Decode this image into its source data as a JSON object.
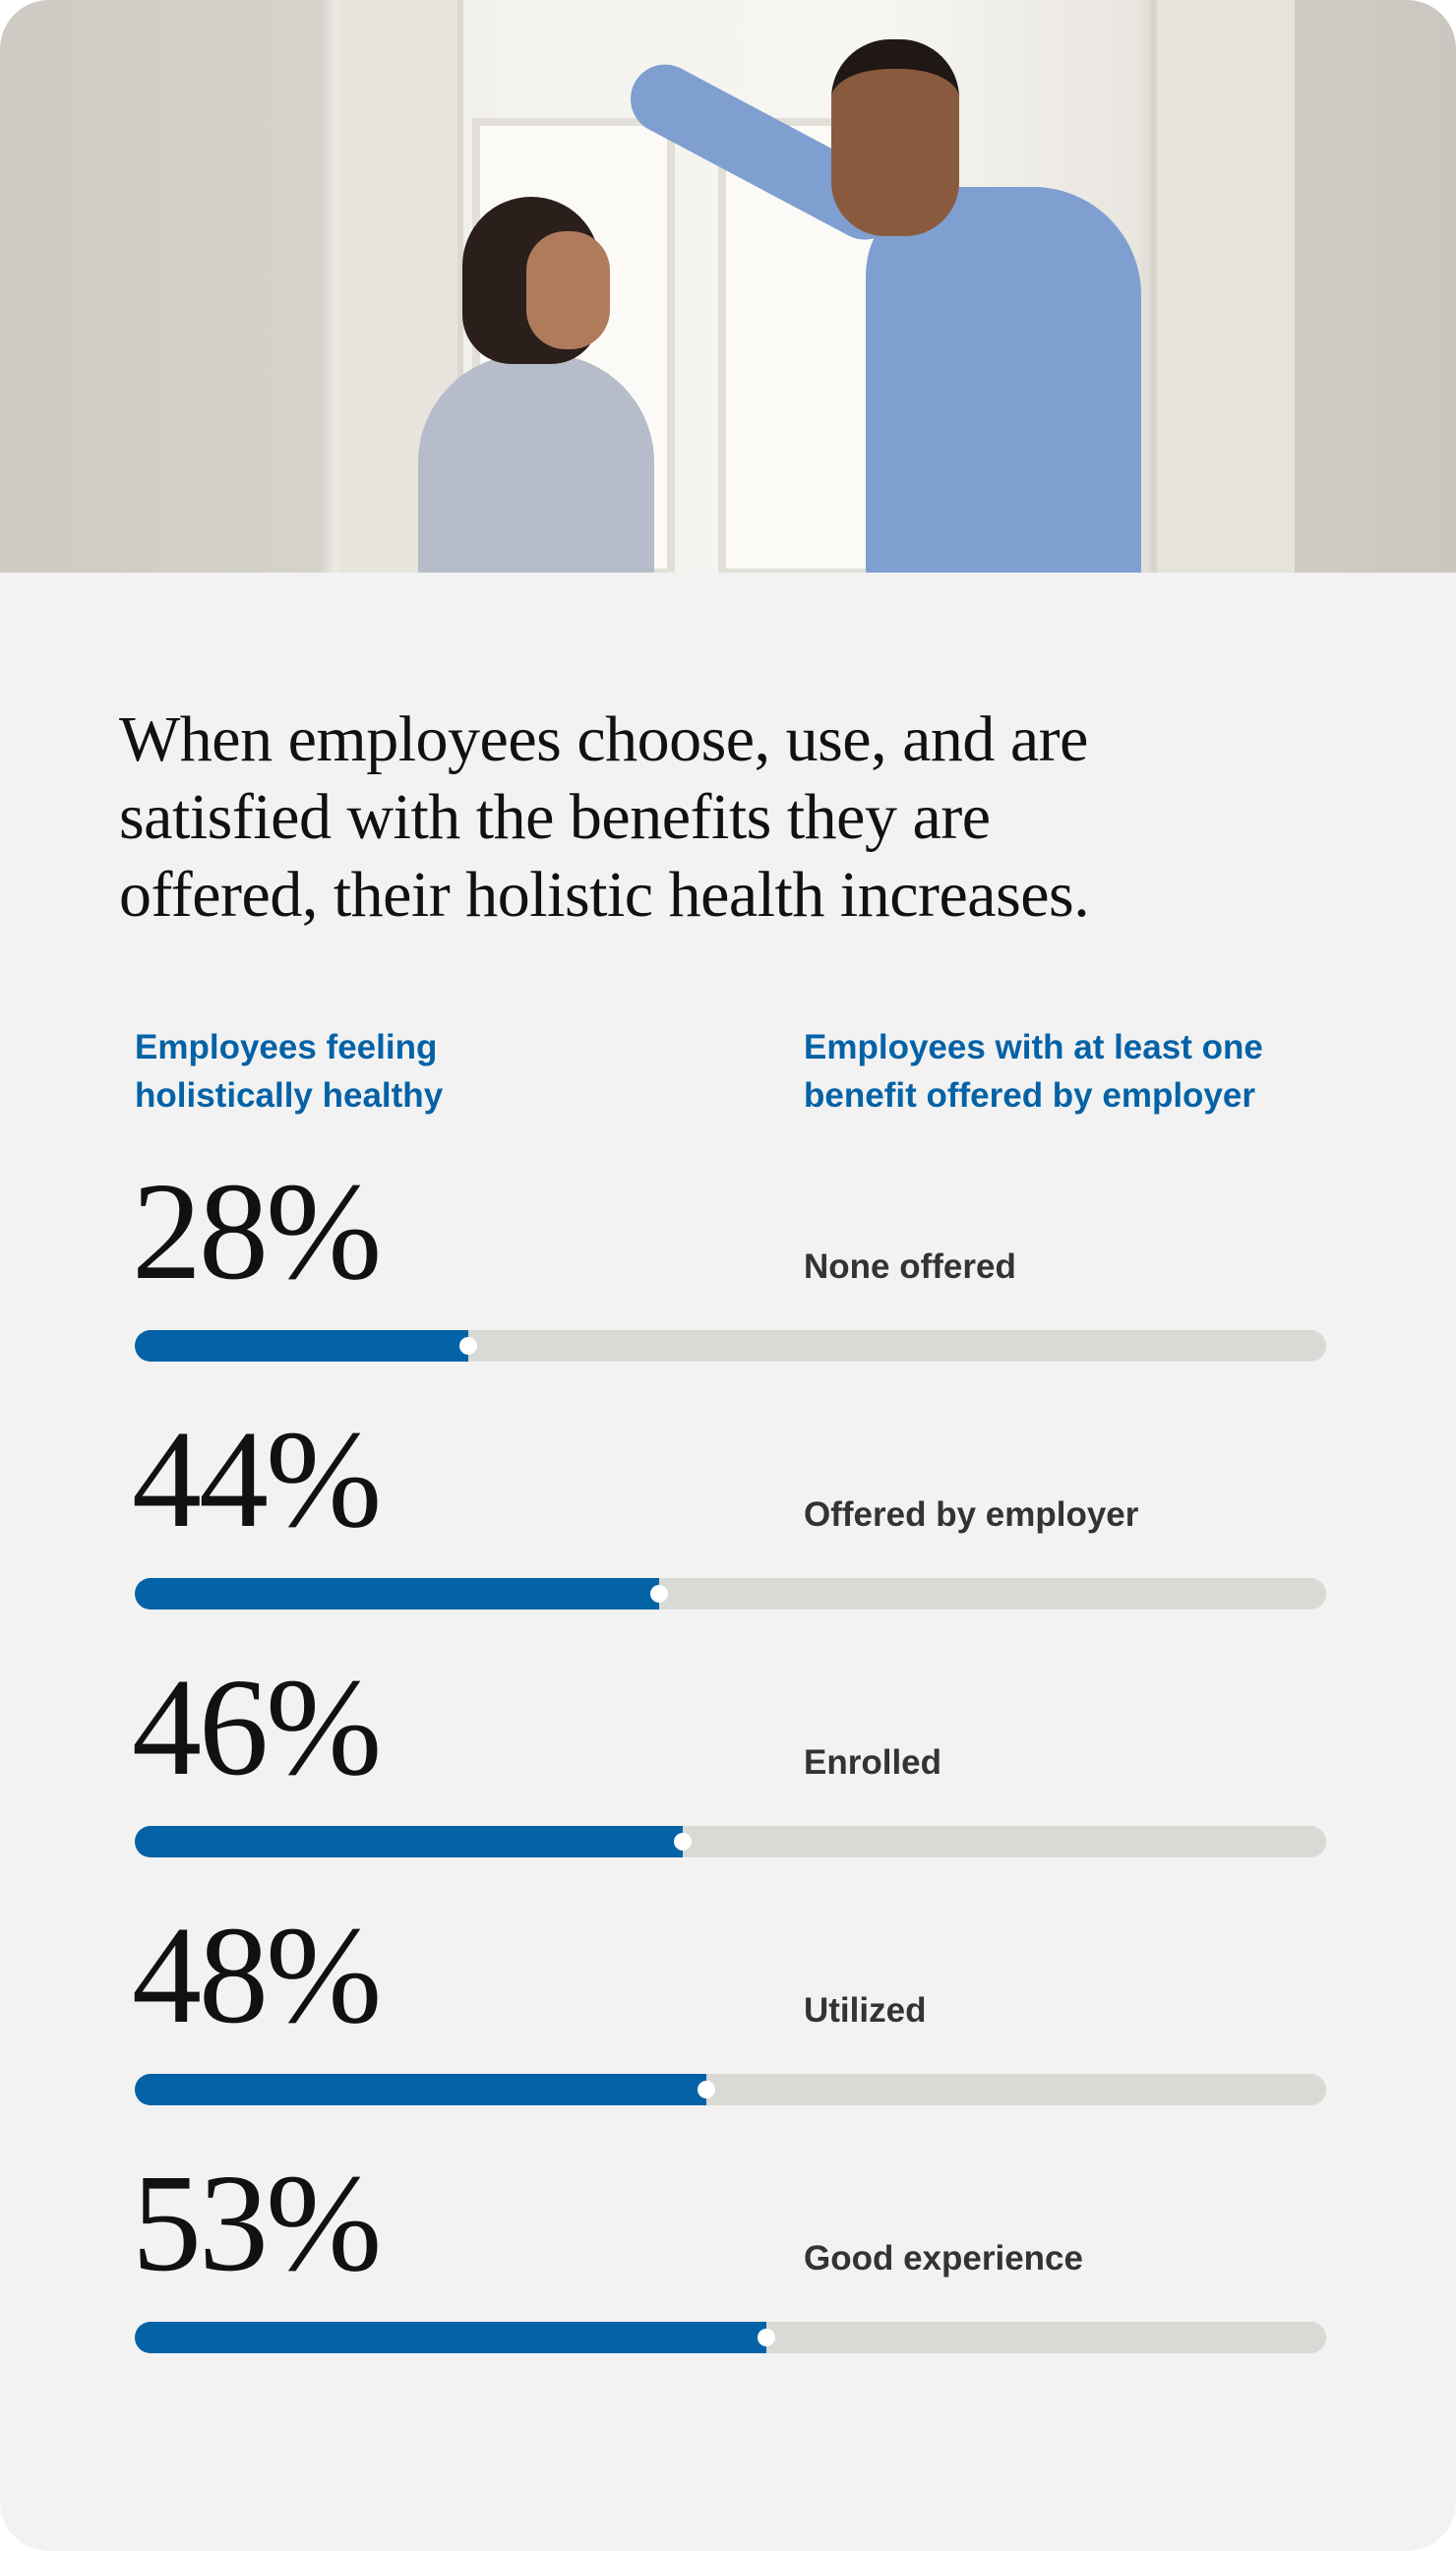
{
  "heading": {
    "line1": "When employees choose, use, and are",
    "line2": "satisfied with the benefits they are",
    "line3": "offered, their holistic health increases."
  },
  "columns": {
    "left_line1": "Employees feeling",
    "left_line2": "holistically healthy",
    "right_line1": "Employees with at least one",
    "right_line2": "benefit offered by employer"
  },
  "colors": {
    "accent": "#0462a6",
    "track": "#d9d9d5",
    "background": "#f2f2f2"
  },
  "chart_data": {
    "type": "bar",
    "orientation": "horizontal",
    "title": "When employees choose, use, and are satisfied with the benefits they are offered, their holistic health increases.",
    "xlabel": "Employees feeling holistically healthy",
    "ylabel": "Employees with at least one benefit offered by employer",
    "xlim": [
      0,
      100
    ],
    "categories": [
      "None offered",
      "Offered by employer",
      "Enrolled",
      "Utilized",
      "Good experience"
    ],
    "values": [
      28,
      44,
      46,
      48,
      53
    ],
    "labels": [
      "28%",
      "44%",
      "46%",
      "48%",
      "53%"
    ]
  }
}
